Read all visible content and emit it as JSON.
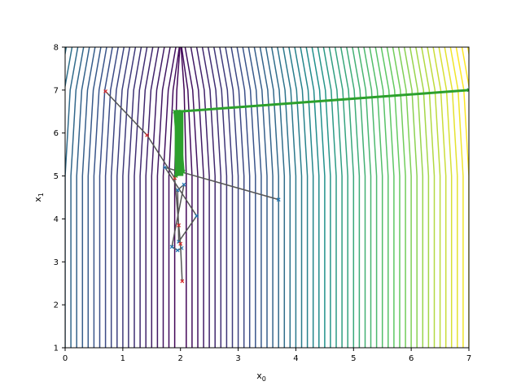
{
  "chart_data": {
    "type": "contour",
    "title": "",
    "xlabel": "x",
    "xlabel_sub": "0",
    "ylabel": "x",
    "ylabel_sub": "1",
    "xlim": [
      0,
      7
    ],
    "ylim": [
      1,
      8
    ],
    "xticks": [
      "0",
      "1",
      "2",
      "3",
      "4",
      "5",
      "6",
      "7"
    ],
    "yticks": [
      "1",
      "2",
      "3",
      "4",
      "5",
      "6",
      "7",
      "8"
    ],
    "grid": false,
    "contour": {
      "description_source": "level sets of a function with minimum valley near x0 = 2; lines are near-vertical with kinks at x1 = 5 and x1 = 7",
      "valley_x0": 2.0,
      "kink_x1": [
        5.0,
        7.0
      ],
      "level_spacing_x0": 0.1,
      "n_levels": 70,
      "colormap": [
        "#440154",
        "#3b528b",
        "#21918c",
        "#5ec962",
        "#fde725"
      ]
    },
    "series": [
      {
        "color": "#1f77b4",
        "marker": "x",
        "line_color": "#555555",
        "points": [
          [
            3.7,
            4.45
          ],
          [
            1.73,
            5.2
          ],
          [
            2.28,
            4.07
          ],
          [
            1.97,
            3.47
          ],
          [
            1.95,
            4.67
          ],
          [
            2.06,
            4.8
          ],
          [
            1.85,
            3.35
          ],
          [
            1.95,
            3.27
          ],
          [
            2.02,
            3.32
          ]
        ]
      },
      {
        "color": "#d62728",
        "marker": "x",
        "line_color": "#555555",
        "points": [
          [
            0.7,
            6.97
          ],
          [
            1.42,
            5.95
          ],
          [
            1.9,
            4.95
          ],
          [
            1.97,
            3.85
          ],
          [
            2.0,
            3.42
          ],
          [
            2.03,
            2.55
          ]
        ]
      },
      {
        "color": "#2ca02c",
        "marker": "x",
        "line_color": "#2ca02c",
        "points": [
          [
            7.0,
            7.0
          ],
          [
            1.98,
            6.5
          ],
          [
            1.9,
            6.5
          ],
          [
            1.98,
            5.1
          ],
          [
            1.92,
            5.0
          ],
          [
            2.05,
            5.1
          ],
          [
            1.96,
            6.5
          ]
        ]
      }
    ]
  }
}
